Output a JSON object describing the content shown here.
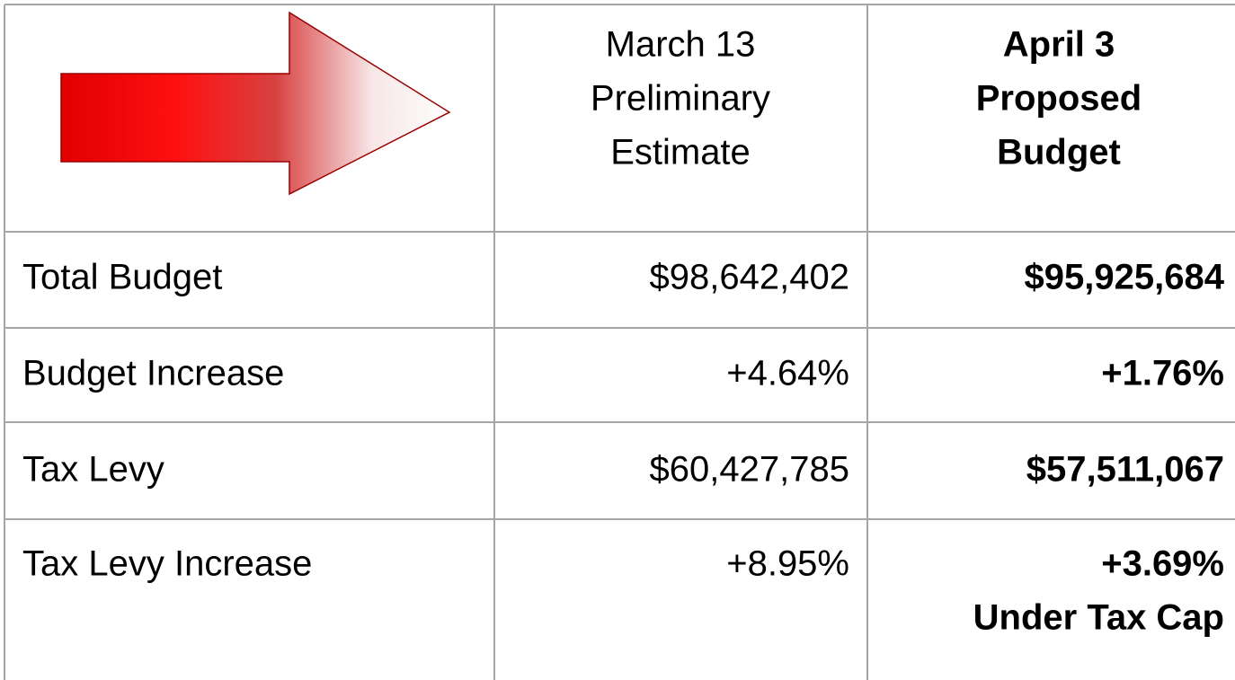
{
  "table": {
    "header": [
      [
        "March 13",
        "Preliminary",
        "Estimate"
      ],
      [
        "April 3",
        "Proposed",
        "Budget"
      ]
    ],
    "rows": [
      [
        "Total Budget",
        "$98,642,402",
        [
          "$95,925,684"
        ]
      ],
      [
        "Budget Increase",
        "+4.64%",
        [
          "+1.76%"
        ]
      ],
      [
        "Tax Levy",
        "$60,427,785",
        [
          "$57,511,067"
        ]
      ],
      [
        "Tax Levy Increase",
        "+8.95%",
        [
          "+3.69%",
          "Under Tax Cap"
        ]
      ]
    ]
  }
}
